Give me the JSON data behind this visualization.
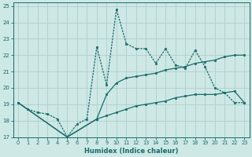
{
  "xlabel": "Humidex (Indice chaleur)",
  "xlim": [
    -0.5,
    23.5
  ],
  "ylim": [
    17,
    25.2
  ],
  "yticks": [
    17,
    18,
    19,
    20,
    21,
    22,
    23,
    24,
    25
  ],
  "xticks": [
    0,
    1,
    2,
    3,
    4,
    5,
    6,
    7,
    8,
    9,
    10,
    11,
    12,
    13,
    14,
    15,
    16,
    17,
    18,
    19,
    20,
    21,
    22,
    23
  ],
  "bg_color": "#cde8e5",
  "line_color": "#1a6b6b",
  "grid_color": "#b0cecc",
  "line1_x": [
    0,
    1,
    2,
    3,
    4,
    5,
    6,
    7,
    8,
    9,
    10,
    11,
    12,
    13,
    14,
    15,
    16,
    17,
    18,
    19,
    20,
    21,
    22,
    23
  ],
  "line1_y": [
    19.1,
    18.7,
    18.5,
    18.4,
    18.1,
    17.0,
    17.8,
    18.1,
    22.5,
    20.2,
    24.8,
    22.7,
    22.4,
    22.4,
    21.5,
    22.4,
    21.4,
    21.2,
    22.3,
    21.3,
    20.0,
    19.7,
    19.1,
    19.1
  ],
  "line2_x": [
    0,
    5,
    8,
    9,
    10,
    11,
    12,
    13,
    14,
    15,
    16,
    17,
    18,
    19,
    20,
    21,
    22,
    23
  ],
  "line2_y": [
    19.1,
    17.0,
    18.1,
    19.6,
    20.3,
    20.6,
    20.7,
    20.8,
    20.9,
    21.1,
    21.2,
    21.3,
    21.5,
    21.6,
    21.7,
    21.9,
    22.0,
    22.0
  ],
  "line3_x": [
    0,
    5,
    8,
    9,
    10,
    11,
    12,
    13,
    14,
    15,
    16,
    17,
    18,
    19,
    20,
    21,
    22,
    23
  ],
  "line3_y": [
    19.1,
    17.0,
    18.1,
    18.3,
    18.5,
    18.7,
    18.9,
    19.0,
    19.1,
    19.2,
    19.4,
    19.5,
    19.6,
    19.6,
    19.6,
    19.7,
    19.8,
    19.1
  ]
}
